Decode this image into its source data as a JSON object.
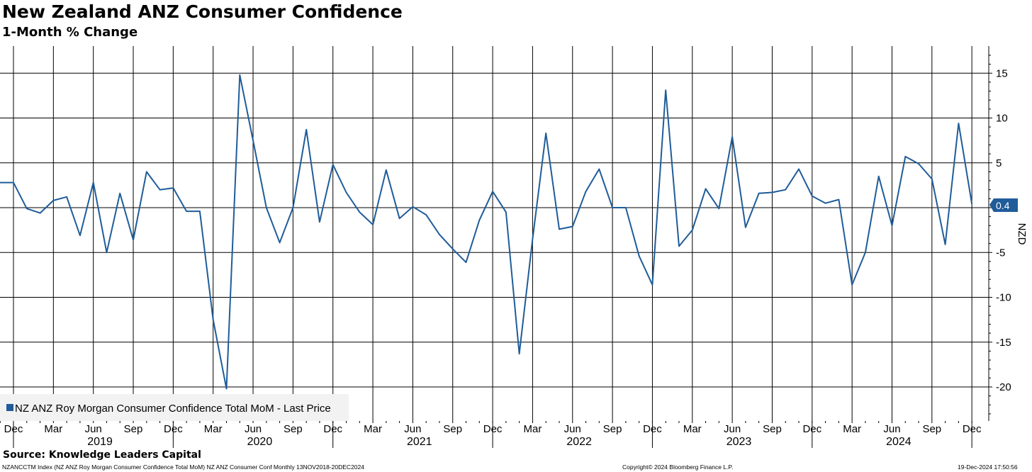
{
  "chart_data": {
    "type": "line",
    "title": "New Zealand ANZ Consumer Confidence",
    "subtitle": "1-Month % Change",
    "ylabel": "NZD",
    "ylim": [
      -23.5,
      18
    ],
    "yticks": [
      15,
      10,
      5,
      0,
      -5,
      -10,
      -15,
      -20
    ],
    "x": [
      "2018-11",
      "2018-12",
      "2019-01",
      "2019-02",
      "2019-03",
      "2019-04",
      "2019-05",
      "2019-06",
      "2019-07",
      "2019-08",
      "2019-09",
      "2019-10",
      "2019-11",
      "2019-12",
      "2020-01",
      "2020-02",
      "2020-03",
      "2020-04",
      "2020-05",
      "2020-06",
      "2020-07",
      "2020-08",
      "2020-09",
      "2020-10",
      "2020-11",
      "2020-12",
      "2021-01",
      "2021-02",
      "2021-03",
      "2021-04",
      "2021-05",
      "2021-06",
      "2021-07",
      "2021-08",
      "2021-09",
      "2021-10",
      "2021-11",
      "2021-12",
      "2022-01",
      "2022-02",
      "2022-03",
      "2022-04",
      "2022-05",
      "2022-06",
      "2022-07",
      "2022-08",
      "2022-09",
      "2022-10",
      "2022-11",
      "2022-12",
      "2023-01",
      "2023-02",
      "2023-03",
      "2023-04",
      "2023-05",
      "2023-06",
      "2023-07",
      "2023-08",
      "2023-09",
      "2023-10",
      "2023-11",
      "2023-12",
      "2024-01",
      "2024-02",
      "2024-03",
      "2024-04",
      "2024-05",
      "2024-06",
      "2024-07",
      "2024-08",
      "2024-09",
      "2024-10",
      "2024-11",
      "2024-12"
    ],
    "series": [
      {
        "name": "NZ ANZ Roy Morgan Consumer Confidence Total MoM - Last Price",
        "color": "#1f5c99",
        "values": [
          2.8,
          2.8,
          -0.1,
          -0.6,
          0.8,
          1.2,
          -3.1,
          2.8,
          -5.0,
          1.6,
          -3.6,
          4.0,
          2.0,
          2.2,
          -0.4,
          -0.4,
          -12.5,
          -20.2,
          14.8,
          7.5,
          0.0,
          -3.9,
          0.0,
          8.7,
          -1.6,
          4.8,
          1.7,
          -0.5,
          -1.9,
          4.2,
          -1.2,
          0.1,
          -0.8,
          -3.0,
          -4.6,
          -6.1,
          -1.4,
          1.8,
          -0.5,
          -16.3,
          -3.5,
          8.3,
          -2.4,
          -2.1,
          1.8,
          4.3,
          0.0,
          0.0,
          -5.4,
          -8.6,
          13.1,
          -4.3,
          -2.5,
          2.1,
          -0.1,
          7.9,
          -2.2,
          1.6,
          1.7,
          2.0,
          4.3,
          1.3,
          0.5,
          0.9,
          -8.6,
          -5.0,
          3.5,
          -2.0,
          5.7,
          4.9,
          3.2,
          -4.1,
          9.4,
          0.4
        ]
      }
    ],
    "x_tick_labels": [
      "Dec",
      "Mar",
      "Jun",
      "Sep",
      "Dec",
      "Mar",
      "Jun",
      "Sep",
      "Dec",
      "Mar",
      "Jun",
      "Sep",
      "Dec",
      "Mar",
      "Jun",
      "Sep",
      "Dec",
      "Mar",
      "Jun",
      "Sep",
      "Dec",
      "Mar",
      "Jun",
      "Sep",
      "Dec"
    ],
    "year_labels": [
      "2019",
      "2020",
      "2021",
      "2022",
      "2023",
      "2024"
    ],
    "last_value_label": "0.4",
    "legend": "NZ ANZ Roy Morgan Consumer Confidence Total MoM - Last Price",
    "legend_position": "bottom-left",
    "grid": true
  },
  "source": "Source: Knowledge Leaders Capital",
  "footer": {
    "left": "NZANCCTM Index (NZ ANZ Roy Morgan Consumer Confidence Total MoM) NZ ANZ Consumer Conf  Monthly 13NOV2018-20DEC2024",
    "center": "Copyright© 2024 Bloomberg Finance L.P.",
    "right": "19-Dec-2024 17:50:56"
  },
  "colors": {
    "line": "#1f5c99",
    "marker": "#1f5c99",
    "background": "#ffffff"
  }
}
